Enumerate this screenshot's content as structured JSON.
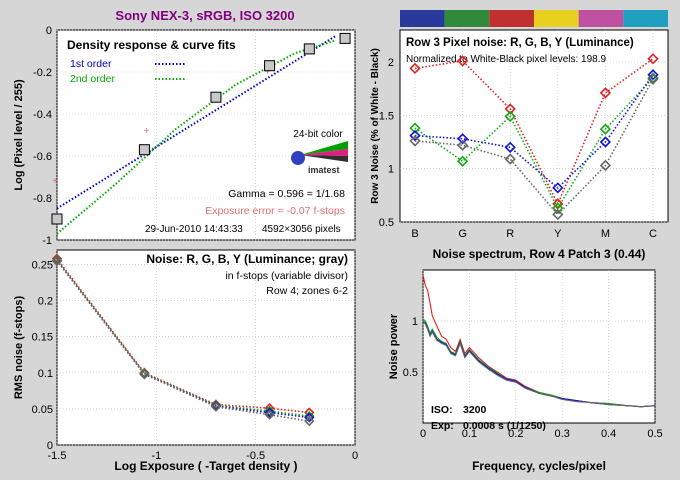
{
  "figure_title": "Sony NEX-3, sRGB, ISO 3200",
  "chart_data": [
    {
      "id": "density",
      "type": "line",
      "title": "Density response & curve fits",
      "xlabel": "",
      "ylabel": "Log (Pixel level / 255)",
      "xlim": [
        -1.5,
        0
      ],
      "ylim": [
        -1,
        0
      ],
      "yticks": [
        "0",
        "-0.2",
        "-0.4",
        "-0.6",
        "-0.8",
        "-1"
      ],
      "ytick_values": [
        0,
        -0.2,
        -0.4,
        -0.6,
        -0.8,
        -1
      ],
      "xtick_values": [
        -1.5,
        -1,
        -0.5,
        0
      ],
      "grid": true,
      "legend": [
        "1st order",
        "2nd order"
      ],
      "legend_colors": [
        "#0000cc",
        "#00aa00"
      ],
      "measured": {
        "x": [
          -1.5,
          -1.06,
          -0.7,
          -0.43,
          -0.23,
          -0.05
        ],
        "y": [
          -0.9,
          -0.57,
          -0.32,
          -0.17,
          -0.09,
          -0.04
        ]
      },
      "pink_points": {
        "x": [
          -1.51,
          -1.05,
          -0.44
        ],
        "y": [
          -0.72,
          -0.48,
          -0.2
        ]
      },
      "fit1": {
        "x": [
          -1.5,
          -0.1
        ],
        "y": [
          -0.85,
          -0.03
        ]
      },
      "fit2": {
        "x": [
          -1.5,
          -1.2,
          -0.9,
          -0.6,
          -0.3,
          -0.1
        ],
        "y": [
          -0.97,
          -0.73,
          -0.47,
          -0.26,
          -0.11,
          -0.05
        ]
      },
      "color_badge": "24-bit color",
      "logo": "imatest",
      "gamma_text": "Gamma = 0.596 = 1/1.68",
      "exposure_error_text": "Exposure error = -0.07 f-stops",
      "date_text": "29-Jun-2010 14:43:33",
      "size_text": "4592×3056 pixels"
    },
    {
      "id": "rgb_noise",
      "type": "line",
      "title": "Row 3 Pixel noise: R, G, B, Y (Luminance)",
      "subtitle": "Normalized to White-Black pixel levels: 198.9",
      "ylabel": "Row 3 Noise (% of White - Black)",
      "categories": [
        "B",
        "G",
        "R",
        "Y",
        "M",
        "C"
      ],
      "yticks": [
        "0.5",
        "1",
        "1.5",
        "2"
      ],
      "ytick_values": [
        0.5,
        1,
        1.5,
        2
      ],
      "ylim": [
        0.5,
        2.3
      ],
      "grid": true,
      "patch_colors": [
        "#2a3a9a",
        "#2f8a3a",
        "#c03030",
        "#e8d020",
        "#c050a0",
        "#20a0c0"
      ],
      "series": [
        {
          "name": "R",
          "color": "#dd2222",
          "values": [
            1.94,
            2.01,
            1.56,
            0.67,
            1.71,
            2.03
          ]
        },
        {
          "name": "G",
          "color": "#11aa11",
          "values": [
            1.38,
            1.07,
            1.49,
            0.63,
            1.37,
            1.85
          ]
        },
        {
          "name": "B",
          "color": "#1111dd",
          "values": [
            1.31,
            1.28,
            1.2,
            0.82,
            1.25,
            1.88
          ]
        },
        {
          "name": "Y",
          "color": "#666666",
          "values": [
            1.26,
            1.22,
            1.09,
            0.57,
            1.03,
            1.84
          ]
        }
      ]
    },
    {
      "id": "rms_noise",
      "type": "line",
      "title": "Noise: R, G, B, Y (Luminance; gray)",
      "annotation1": "in f-stops (variable divisor)",
      "annotation2": "Row 4;  zones 6-2",
      "xlabel": "Log Exposure ( -Target density )",
      "ylabel": "RMS noise (f-stops)",
      "xticks": [
        "-1.5",
        "-1",
        "-0.5",
        "0"
      ],
      "xtick_values": [
        -1.5,
        -1,
        -0.5,
        0
      ],
      "yticks": [
        "0",
        "0.05",
        "0.1",
        "0.15",
        "0.2",
        "0.25"
      ],
      "ytick_values": [
        0,
        0.05,
        0.1,
        0.15,
        0.2,
        0.25
      ],
      "xlim": [
        -1.5,
        0
      ],
      "ylim": [
        0,
        0.27
      ],
      "grid": true,
      "x": [
        -1.5,
        -1.06,
        -0.7,
        -0.43,
        -0.23
      ],
      "series": [
        {
          "name": "R",
          "color": "#dd2222",
          "values": [
            0.258,
            0.1,
            0.056,
            0.051,
            0.045
          ]
        },
        {
          "name": "G",
          "color": "#11aa11",
          "values": [
            0.256,
            0.099,
            0.055,
            0.047,
            0.04
          ]
        },
        {
          "name": "B",
          "color": "#1111dd",
          "values": [
            0.255,
            0.098,
            0.054,
            0.045,
            0.038
          ]
        },
        {
          "name": "Y",
          "color": "#666666",
          "values": [
            0.255,
            0.098,
            0.053,
            0.042,
            0.033
          ]
        }
      ]
    },
    {
      "id": "spectrum",
      "type": "line",
      "title": "Noise spectrum, Row 4 Patch 3 (0.44)",
      "xlabel": "Frequency, cycles/pixel",
      "ylabel": "Noise power",
      "xticks": [
        "0",
        "0.1",
        "0.2",
        "0.3",
        "0.4",
        "0.5"
      ],
      "xtick_values": [
        0,
        0.1,
        0.2,
        0.3,
        0.4,
        0.5
      ],
      "yticks": [
        "0.5",
        "1"
      ],
      "ytick_values": [
        0.5,
        1
      ],
      "xlim": [
        0,
        0.5
      ],
      "ylim": [
        0,
        1.5
      ],
      "grid": true,
      "iso_label": "ISO:",
      "iso_value": "3200",
      "exp_label": "Exp:",
      "exp_value": "0.0008 s  (1/1250)",
      "series": [
        {
          "name": "R",
          "color": "#dd2222",
          "x": [
            0,
            0.005,
            0.01,
            0.015,
            0.02,
            0.03,
            0.04,
            0.05,
            0.06,
            0.07,
            0.08,
            0.09,
            0.1,
            0.12,
            0.14,
            0.16,
            0.18,
            0.2,
            0.22,
            0.25,
            0.28,
            0.3,
            0.33,
            0.36,
            0.4,
            0.44,
            0.47,
            0.5
          ],
          "values": [
            1.45,
            1.35,
            1.3,
            1.18,
            1.05,
            0.95,
            0.85,
            0.82,
            0.74,
            0.7,
            0.82,
            0.68,
            0.74,
            0.64,
            0.56,
            0.5,
            0.44,
            0.42,
            0.36,
            0.3,
            0.27,
            0.24,
            0.22,
            0.2,
            0.19,
            0.17,
            0.16,
            0.17
          ]
        },
        {
          "name": "G",
          "color": "#11aa11",
          "x": [
            0,
            0.005,
            0.01,
            0.015,
            0.02,
            0.03,
            0.04,
            0.05,
            0.06,
            0.07,
            0.08,
            0.09,
            0.1,
            0.12,
            0.14,
            0.16,
            0.18,
            0.2,
            0.22,
            0.25,
            0.28,
            0.3,
            0.33,
            0.36,
            0.4,
            0.44,
            0.47,
            0.5
          ],
          "values": [
            1.02,
            1.0,
            0.95,
            0.88,
            0.92,
            0.84,
            0.8,
            0.78,
            0.7,
            0.68,
            0.8,
            0.66,
            0.72,
            0.62,
            0.55,
            0.49,
            0.43,
            0.41,
            0.35,
            0.3,
            0.27,
            0.24,
            0.22,
            0.2,
            0.19,
            0.17,
            0.16,
            0.17
          ]
        },
        {
          "name": "B",
          "color": "#1111dd",
          "x": [
            0,
            0.005,
            0.01,
            0.015,
            0.02,
            0.03,
            0.04,
            0.05,
            0.06,
            0.07,
            0.08,
            0.09,
            0.1,
            0.12,
            0.14,
            0.16,
            0.18,
            0.2,
            0.22,
            0.25,
            0.28,
            0.3,
            0.33,
            0.36,
            0.4,
            0.44,
            0.47,
            0.5
          ],
          "values": [
            1.0,
            0.98,
            0.93,
            0.86,
            0.9,
            0.82,
            0.79,
            0.77,
            0.69,
            0.67,
            0.79,
            0.65,
            0.71,
            0.61,
            0.54,
            0.48,
            0.43,
            0.41,
            0.35,
            0.29,
            0.26,
            0.24,
            0.22,
            0.2,
            0.18,
            0.17,
            0.16,
            0.17
          ]
        },
        {
          "name": "Y",
          "color": "#666666",
          "x": [
            0,
            0.005,
            0.01,
            0.015,
            0.02,
            0.03,
            0.04,
            0.05,
            0.06,
            0.07,
            0.08,
            0.09,
            0.1,
            0.12,
            0.14,
            0.16,
            0.18,
            0.2,
            0.22,
            0.25,
            0.28,
            0.3,
            0.33,
            0.36,
            0.4,
            0.44,
            0.47,
            0.5
          ],
          "values": [
            1.0,
            0.97,
            0.92,
            0.85,
            0.89,
            0.81,
            0.78,
            0.76,
            0.68,
            0.66,
            0.78,
            0.64,
            0.7,
            0.6,
            0.53,
            0.47,
            0.42,
            0.4,
            0.34,
            0.29,
            0.26,
            0.23,
            0.21,
            0.2,
            0.18,
            0.17,
            0.16,
            0.17
          ]
        }
      ]
    }
  ]
}
